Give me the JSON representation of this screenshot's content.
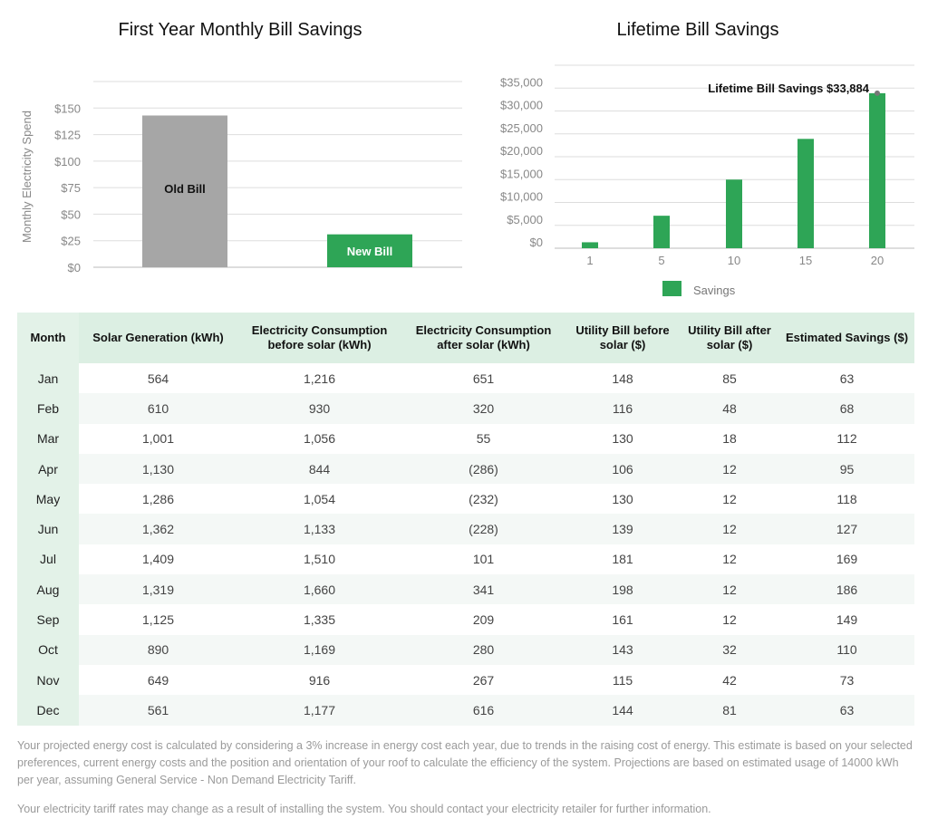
{
  "chart_data": [
    {
      "type": "bar",
      "title": "First Year Monthly Bill Savings",
      "ylabel": "Monthly Electricity Spend",
      "xlabel": "",
      "categories": [
        "Old Bill",
        "New Bill"
      ],
      "values": [
        143,
        31
      ],
      "ylim": [
        0,
        175
      ],
      "yticks": [
        "$0",
        "$25",
        "$50",
        "$75",
        "$100",
        "$125",
        "$150"
      ],
      "grid": true,
      "colors": [
        "#a6a6a6",
        "#2ea556"
      ]
    },
    {
      "type": "bar",
      "title": "Lifetime Bill Savings",
      "xlabel": "",
      "ylabel": "",
      "categories": [
        "1",
        "5",
        "10",
        "15",
        "20"
      ],
      "series": [
        {
          "name": "Savings",
          "values": [
            1300,
            7100,
            15000,
            23900,
            33884
          ]
        }
      ],
      "ylim": [
        0,
        40000
      ],
      "yticks": [
        "$0",
        "$5,000",
        "$10,000",
        "$15,000",
        "$20,000",
        "$25,000",
        "$30,000",
        "$35,000"
      ],
      "annotation": "Lifetime Bill Savings $33,884",
      "legend": "bottom",
      "grid": true,
      "colors": [
        "#2ea556"
      ]
    }
  ],
  "table": {
    "headers": [
      "Month",
      "Solar Generation (kWh)",
      "Electricity Consumption before solar (kWh)",
      "Electricity Consumption after solar (kWh)",
      "Utility Bill before solar ($)",
      "Utility Bill after solar ($)",
      "Estimated Savings ($)"
    ],
    "rows": [
      [
        "Jan",
        "564",
        "1,216",
        "651",
        "148",
        "85",
        "63"
      ],
      [
        "Feb",
        "610",
        "930",
        "320",
        "116",
        "48",
        "68"
      ],
      [
        "Mar",
        "1,001",
        "1,056",
        "55",
        "130",
        "18",
        "112"
      ],
      [
        "Apr",
        "1,130",
        "844",
        "(286)",
        "106",
        "12",
        "95"
      ],
      [
        "May",
        "1,286",
        "1,054",
        "(232)",
        "130",
        "12",
        "118"
      ],
      [
        "Jun",
        "1,362",
        "1,133",
        "(228)",
        "139",
        "12",
        "127"
      ],
      [
        "Jul",
        "1,409",
        "1,510",
        "101",
        "181",
        "12",
        "169"
      ],
      [
        "Aug",
        "1,319",
        "1,660",
        "341",
        "198",
        "12",
        "186"
      ],
      [
        "Sep",
        "1,125",
        "1,335",
        "209",
        "161",
        "12",
        "149"
      ],
      [
        "Oct",
        "890",
        "1,169",
        "280",
        "143",
        "32",
        "110"
      ],
      [
        "Nov",
        "649",
        "916",
        "267",
        "115",
        "42",
        "73"
      ],
      [
        "Dec",
        "561",
        "1,177",
        "616",
        "144",
        "81",
        "63"
      ]
    ]
  },
  "footnotes": [
    "Your projected energy cost is calculated by considering a 3% increase in energy cost each year, due to trends in the raising cost of energy. This estimate is based on your selected preferences, current energy costs and the position and orientation of your roof to calculate the efficiency of the system. Projections are based on estimated usage of 14000 kWh per year, assuming General Service - Non Demand Electricity Tariff.",
    "Your electricity tariff rates may change as a result of installing the system. You should contact your electricity retailer for further information."
  ]
}
